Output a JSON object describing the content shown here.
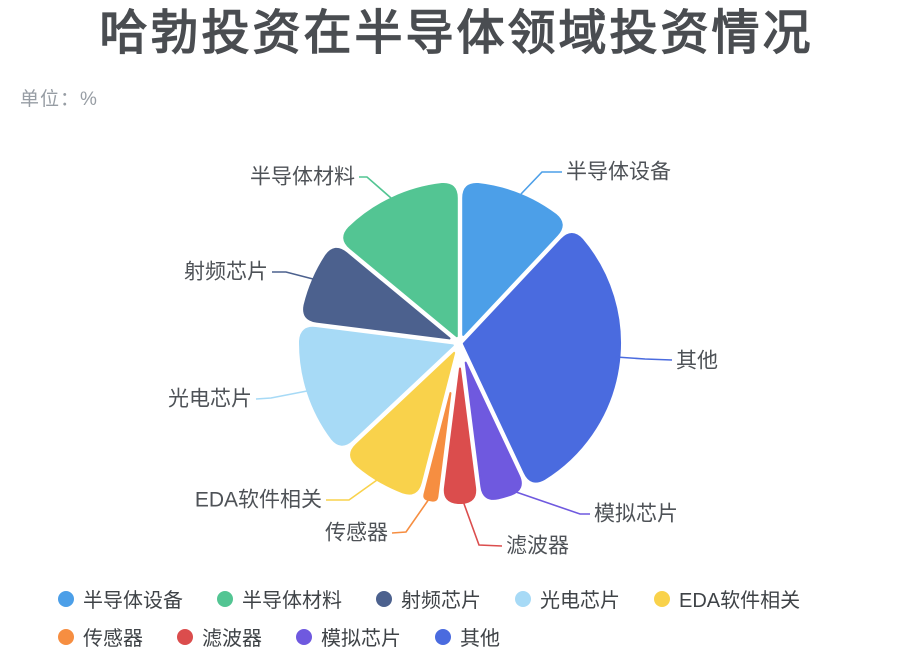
{
  "title": "哈勃投资在半导体领域投资情况",
  "unit_label": "单位：%",
  "background_color": "#ffffff",
  "text_colors": {
    "title": "#4a4d51",
    "unit": "#979da4",
    "slice_label": "#4e5257",
    "legend": "#3f4347"
  },
  "chart_data": {
    "type": "pie",
    "title": "哈勃投资在半导体领域投资情况",
    "unit": "%",
    "start_angle_deg": 0,
    "clockwise": true,
    "values_are_percent": true,
    "values_estimated_from_angles": true,
    "data_labels_shown": false,
    "series": [
      {
        "name": "半导体设备",
        "value": 12,
        "color": "#4c9fe8"
      },
      {
        "name": "其他",
        "value": 31,
        "color": "#4a6bdf"
      },
      {
        "name": "模拟芯片",
        "value": 5,
        "color": "#6f59df"
      },
      {
        "name": "滤波器",
        "value": 4,
        "color": "#db4d4d"
      },
      {
        "name": "传感器",
        "value": 2,
        "color": "#f68e41"
      },
      {
        "name": "EDA软件相关",
        "value": 9,
        "color": "#f9d24b"
      },
      {
        "name": "光电芯片",
        "value": 14,
        "color": "#a7daf6"
      },
      {
        "name": "射频芯片",
        "value": 9,
        "color": "#4c618e"
      },
      {
        "name": "半导体材料",
        "value": 14,
        "color": "#53c593"
      }
    ],
    "legend_position": "bottom-left"
  },
  "legend": {
    "rows": [
      [
        "半导体设备",
        "半导体材料",
        "射频芯片",
        "光电芯片",
        "EDA软件相关"
      ],
      [
        "传感器",
        "滤波器",
        "模拟芯片",
        "其他"
      ]
    ]
  }
}
